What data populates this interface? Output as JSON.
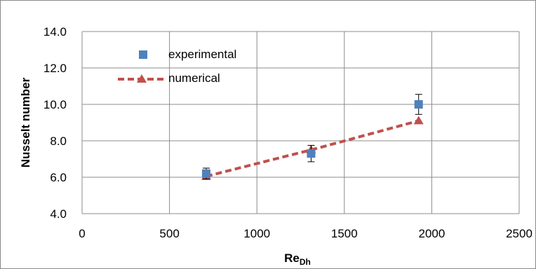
{
  "chart_data": {
    "type": "scatter",
    "xlabel": "Re",
    "xlabel_subscript": "Dh",
    "ylabel": "Nusselt number",
    "xlim": [
      0,
      2500
    ],
    "ylim": [
      4.0,
      14.0
    ],
    "x_ticks": [
      "0",
      "500",
      "1000",
      "1500",
      "2000",
      "2500"
    ],
    "y_ticks": [
      "4.0",
      "6.0",
      "8.0",
      "10.0",
      "12.0",
      "14.0"
    ],
    "grid": true,
    "legend_position": "top-left",
    "series": [
      {
        "name": "experimental",
        "marker": "square",
        "color": "#4f81bd",
        "x": [
          710,
          1310,
          1925
        ],
        "y": [
          6.2,
          7.3,
          10.0
        ],
        "error": [
          0.3,
          0.45,
          0.55
        ]
      },
      {
        "name": "numerical",
        "marker": "triangle",
        "line": "dashed",
        "color": "#c0504d",
        "x": [
          710,
          1310,
          1925
        ],
        "y": [
          6.05,
          7.5,
          9.1
        ]
      }
    ]
  }
}
